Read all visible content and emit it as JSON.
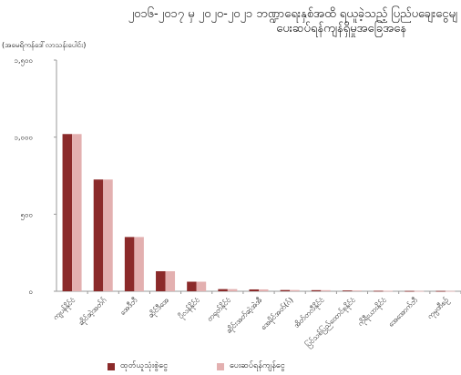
{
  "chart_data": {
    "type": "bar",
    "title_line1": "၂၀၁၆-၂၀၁၇ မှ ၂၀၂၀-၂၀၂၁ ဘဏ္ဍာရေးနှစ်အထိ ရယူခဲ့သည့် ပြည်ပချေးငွေမျ",
    "title_line2": "ပေးဆပ်ရန်ကျန်ရှိမှုအခြေအနေ",
    "unit_label": "(အမေရိကန်ဒေါ်လာသန်းပေါင်း)",
    "ylim": [
      0,
      1500
    ],
    "yticks": [
      {
        "value": 0,
        "label": "၀"
      },
      {
        "value": 500,
        "label": "၅၀၀"
      },
      {
        "value": 1000,
        "label": "၁,၀၀၀"
      },
      {
        "value": 1500,
        "label": "၁,၅၀၀"
      }
    ],
    "categories": [
      "ကျပန်နိုင်ငံ",
      "ဆိုင်ဆဲ့အတ်ဂ်",
      "အေဒီဘီ",
      "ဆိုင်ဒီအေ",
      "ပိုလန်နိုင်ငံ",
      "တရုတ်နိုင်ငံ",
      "ဆိုင်းအတ်ဆဲ့အဲအီ",
      "အေမိုင်အတ်(ဂ်)",
      "အိတ်တလီနိုင်ငံ",
      "ပြင်သစ်ပြည်ထောင်စုနိုင်ငံ",
      "ကိုရီးယားနိုင်ငံ",
      "အေအောက်ဘီ",
      "ကုမ္ပဏီစဉ်"
    ],
    "series": [
      {
        "name": "ထုတ်ယူသုံးစွဲငွေ",
        "color": "#8b2a2a",
        "values": [
          1020,
          725,
          352,
          130,
          62,
          14,
          12,
          8,
          7,
          5,
          3,
          2,
          2
        ]
      },
      {
        "name": "ပေးဆပ်ရန်ကျန်ငွေ",
        "color": "#e3b0b0",
        "values": [
          1020,
          725,
          352,
          130,
          62,
          14,
          12,
          8,
          7,
          5,
          3,
          2,
          2
        ]
      }
    ],
    "legend_position": "bottom",
    "grid": false
  }
}
